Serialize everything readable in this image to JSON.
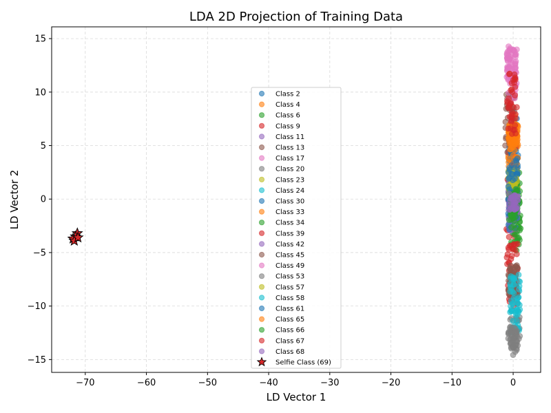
{
  "chart_data": {
    "type": "scatter",
    "title": "LDA 2D Projection of Training Data",
    "xlabel": "LD Vector 1",
    "ylabel": "LD Vector 2",
    "xlim": [
      -75.5,
      4.5
    ],
    "ylim": [
      -16.2,
      16.1
    ],
    "xticks": [
      -70,
      -60,
      -50,
      -40,
      -30,
      -20,
      -10,
      0
    ],
    "yticks": [
      -15,
      -10,
      -5,
      0,
      5,
      10,
      15
    ],
    "grid": true,
    "legend_position": "center",
    "series": [
      {
        "name": "Class 2",
        "color": "#1f77b4",
        "x_center": 0.0,
        "y_min": -3.5,
        "y_max": 8.5
      },
      {
        "name": "Class 4",
        "color": "#ff7f0e",
        "x_center": 0.0,
        "y_min": 2.0,
        "y_max": 8.0
      },
      {
        "name": "Class 6",
        "color": "#2ca02c",
        "x_center": 0.3,
        "y_min": -5.0,
        "y_max": 3.0
      },
      {
        "name": "Class 9",
        "color": "#d62728",
        "x_center": -0.3,
        "y_min": -9.0,
        "y_max": 10.0
      },
      {
        "name": "Class 11",
        "color": "#9467bd",
        "x_center": 0.0,
        "y_min": -3.0,
        "y_max": 2.0
      },
      {
        "name": "Class 13",
        "color": "#8c564b",
        "x_center": -0.5,
        "y_min": 4.0,
        "y_max": 10.0
      },
      {
        "name": "Class 17",
        "color": "#e377c2",
        "x_center": -0.2,
        "y_min": 9.0,
        "y_max": 14.6
      },
      {
        "name": "Class 20",
        "color": "#7f7f7f",
        "x_center": 0.3,
        "y_min": -14.6,
        "y_max": -11.0
      },
      {
        "name": "Class 23",
        "color": "#bcbd22",
        "x_center": 0.0,
        "y_min": -1.0,
        "y_max": 3.0
      },
      {
        "name": "Class 24",
        "color": "#17becf",
        "x_center": 0.3,
        "y_min": -12.5,
        "y_max": -6.0
      },
      {
        "name": "Class 30",
        "color": "#1f77b4",
        "x_center": 0.0,
        "y_min": -3.0,
        "y_max": 5.0
      },
      {
        "name": "Class 33",
        "color": "#ff7f0e",
        "x_center": 0.0,
        "y_min": 3.0,
        "y_max": 7.0
      },
      {
        "name": "Class 34",
        "color": "#2ca02c",
        "x_center": 0.5,
        "y_min": -4.0,
        "y_max": 2.0
      },
      {
        "name": "Class 39",
        "color": "#d62728",
        "x_center": 0.0,
        "y_min": -10.0,
        "y_max": -4.0
      },
      {
        "name": "Class 42",
        "color": "#9467bd",
        "x_center": 0.0,
        "y_min": -2.0,
        "y_max": 1.0
      },
      {
        "name": "Class 45",
        "color": "#8c564b",
        "x_center": 0.0,
        "y_min": -9.0,
        "y_max": -6.0
      },
      {
        "name": "Class 49",
        "color": "#e377c2",
        "x_center": -0.3,
        "y_min": 11.0,
        "y_max": 14.0
      },
      {
        "name": "Class 53",
        "color": "#7f7f7f",
        "x_center": 0.0,
        "y_min": -14.0,
        "y_max": -12.0
      },
      {
        "name": "Class 57",
        "color": "#bcbd22",
        "x_center": 0.0,
        "y_min": 0.0,
        "y_max": 2.0
      },
      {
        "name": "Class 58",
        "color": "#17becf",
        "x_center": 0.3,
        "y_min": -11.0,
        "y_max": -7.0
      },
      {
        "name": "Class 61",
        "color": "#1f77b4",
        "x_center": 0.0,
        "y_min": -2.0,
        "y_max": 4.0
      },
      {
        "name": "Class 65",
        "color": "#ff7f0e",
        "x_center": 0.0,
        "y_min": 5.0,
        "y_max": 7.0
      },
      {
        "name": "Class 66",
        "color": "#2ca02c",
        "x_center": 0.0,
        "y_min": -2.0,
        "y_max": 1.0
      },
      {
        "name": "Class 67",
        "color": "#d62728",
        "x_center": -0.2,
        "y_min": 6.0,
        "y_max": 11.8
      },
      {
        "name": "Class 68",
        "color": "#9467bd",
        "x_center": 0.0,
        "y_min": -1.0,
        "y_max": 0.5
      }
    ],
    "special_series": {
      "name": "Selfie Class (69)",
      "marker": "star",
      "color": "#d62728",
      "points": [
        [
          -71.3,
          -3.2
        ],
        [
          -71.6,
          -3.5
        ],
        [
          -72.0,
          -3.7
        ],
        [
          -71.8,
          -3.9
        ],
        [
          -71.2,
          -3.6
        ]
      ]
    }
  }
}
